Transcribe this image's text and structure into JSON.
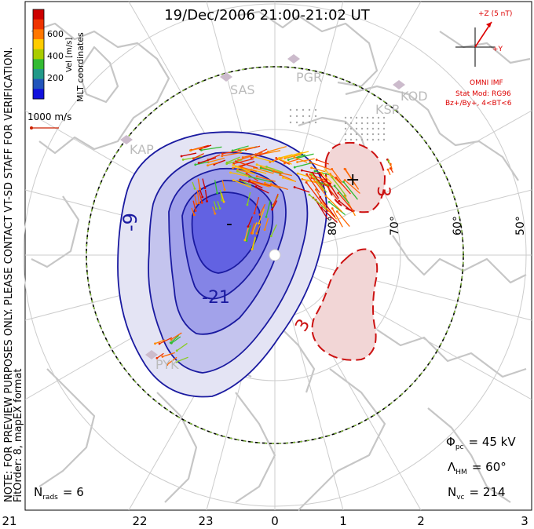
{
  "title": "19/Dec/2006 21:00-21:02 UT",
  "left_margin_text": "NOTE: FOR PREVIEW PURPOSES ONLY. PLEASE CONTACT VT-SD STAFF FOR VERIFICATION.",
  "left_margin_text2": "FitOrder: 8, mapEX format",
  "top_left_label": "MLT coordinates",
  "velocity_scale": {
    "title": "Vel [m/s]",
    "ticks": [
      "600",
      "400",
      "200"
    ],
    "colors": [
      "#cc0000",
      "#ee3300",
      "#ff7700",
      "#ffcc00",
      "#aacc00",
      "#33bb33",
      "#229988",
      "#2255bb",
      "#1111dd"
    ]
  },
  "reference_vector": "1000 m/s",
  "imf_clock": {
    "z_label": "+Z (5 nT)",
    "y_label": "+Y",
    "source": "OMNI IMF",
    "stat_model": "Stat Mod: RG96",
    "condition": "Bz+/By+, 4<BT<6"
  },
  "radar_labels": [
    "SAS",
    "PGR",
    "KSR",
    "KOD",
    "KAP",
    "PYK"
  ],
  "latitude_labels": [
    "80°",
    "70°",
    "60°",
    "50°"
  ],
  "contour_labels": [
    "-9",
    "-21",
    "-",
    "+",
    "3",
    "3"
  ],
  "stats": {
    "phi_pc_symbol": "Φ",
    "phi_pc_sub": "pc",
    "phi_pc_value": "= 45 kV",
    "lambda_symbol": "Λ",
    "lambda_sub": "HM",
    "lambda_value": "= 60°",
    "nvc_symbol": "N",
    "nvc_sub": "vc",
    "nvc_value": "= 214",
    "nrads_symbol": "N",
    "nrads_sub": "rads",
    "nrads_value": "= 6"
  },
  "mlt_axis_labels": [
    "21",
    "22",
    "23",
    "0",
    "1",
    "2",
    "3"
  ],
  "colors": {
    "negative_contour": "#1a1aa0",
    "positive_contour": "#cc1111",
    "negative_fill": "#5a5ae0",
    "positive_fill": "#f2d6d6",
    "coastline": "#c6c6c6",
    "grid": "#cccccc",
    "heppner_boundary": "#88cc33"
  }
}
